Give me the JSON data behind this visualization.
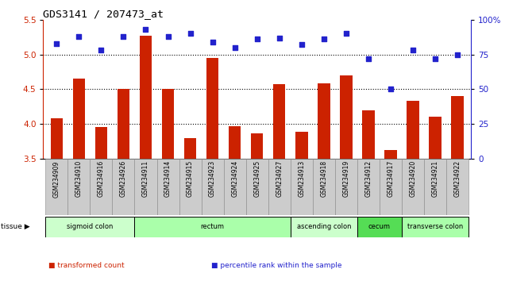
{
  "title": "GDS3141 / 207473_at",
  "samples": [
    "GSM234909",
    "GSM234910",
    "GSM234916",
    "GSM234926",
    "GSM234911",
    "GSM234914",
    "GSM234915",
    "GSM234923",
    "GSM234924",
    "GSM234925",
    "GSM234927",
    "GSM234913",
    "GSM234918",
    "GSM234919",
    "GSM234912",
    "GSM234917",
    "GSM234920",
    "GSM234921",
    "GSM234922"
  ],
  "bar_values": [
    4.08,
    4.65,
    3.96,
    4.5,
    5.27,
    4.51,
    3.8,
    4.95,
    3.97,
    3.87,
    4.57,
    3.89,
    4.58,
    4.7,
    4.2,
    3.62,
    4.33,
    4.1,
    4.4
  ],
  "percentile_values": [
    83,
    88,
    78,
    88,
    93,
    88,
    90,
    84,
    80,
    86,
    87,
    82,
    86,
    90,
    72,
    50,
    78,
    72,
    75
  ],
  "ylim_left": [
    3.5,
    5.5
  ],
  "ylim_right": [
    0,
    100
  ],
  "yticks_left": [
    3.5,
    4.0,
    4.5,
    5.0,
    5.5
  ],
  "yticks_right": [
    0,
    25,
    50,
    75,
    100
  ],
  "ytick_right_labels": [
    "0",
    "25",
    "50",
    "75",
    "100%"
  ],
  "bar_color": "#CC2200",
  "dot_color": "#2222CC",
  "bg_color": "#FFFFFF",
  "tissue_groups": [
    {
      "label": "sigmoid colon",
      "start": 0,
      "end": 3,
      "color": "#CCFFCC"
    },
    {
      "label": "rectum",
      "start": 4,
      "end": 10,
      "color": "#AAFFAA"
    },
    {
      "label": "ascending colon",
      "start": 11,
      "end": 13,
      "color": "#CCFFCC"
    },
    {
      "label": "cecum",
      "start": 14,
      "end": 15,
      "color": "#55DD55"
    },
    {
      "label": "transverse colon",
      "start": 16,
      "end": 18,
      "color": "#AAFFAA"
    }
  ],
  "ylabel_left_color": "#CC2200",
  "ylabel_right_color": "#2222CC",
  "legend_items": [
    "transformed count",
    "percentile rank within the sample"
  ],
  "legend_colors": [
    "#CC2200",
    "#2222CC"
  ],
  "bar_width": 0.55
}
